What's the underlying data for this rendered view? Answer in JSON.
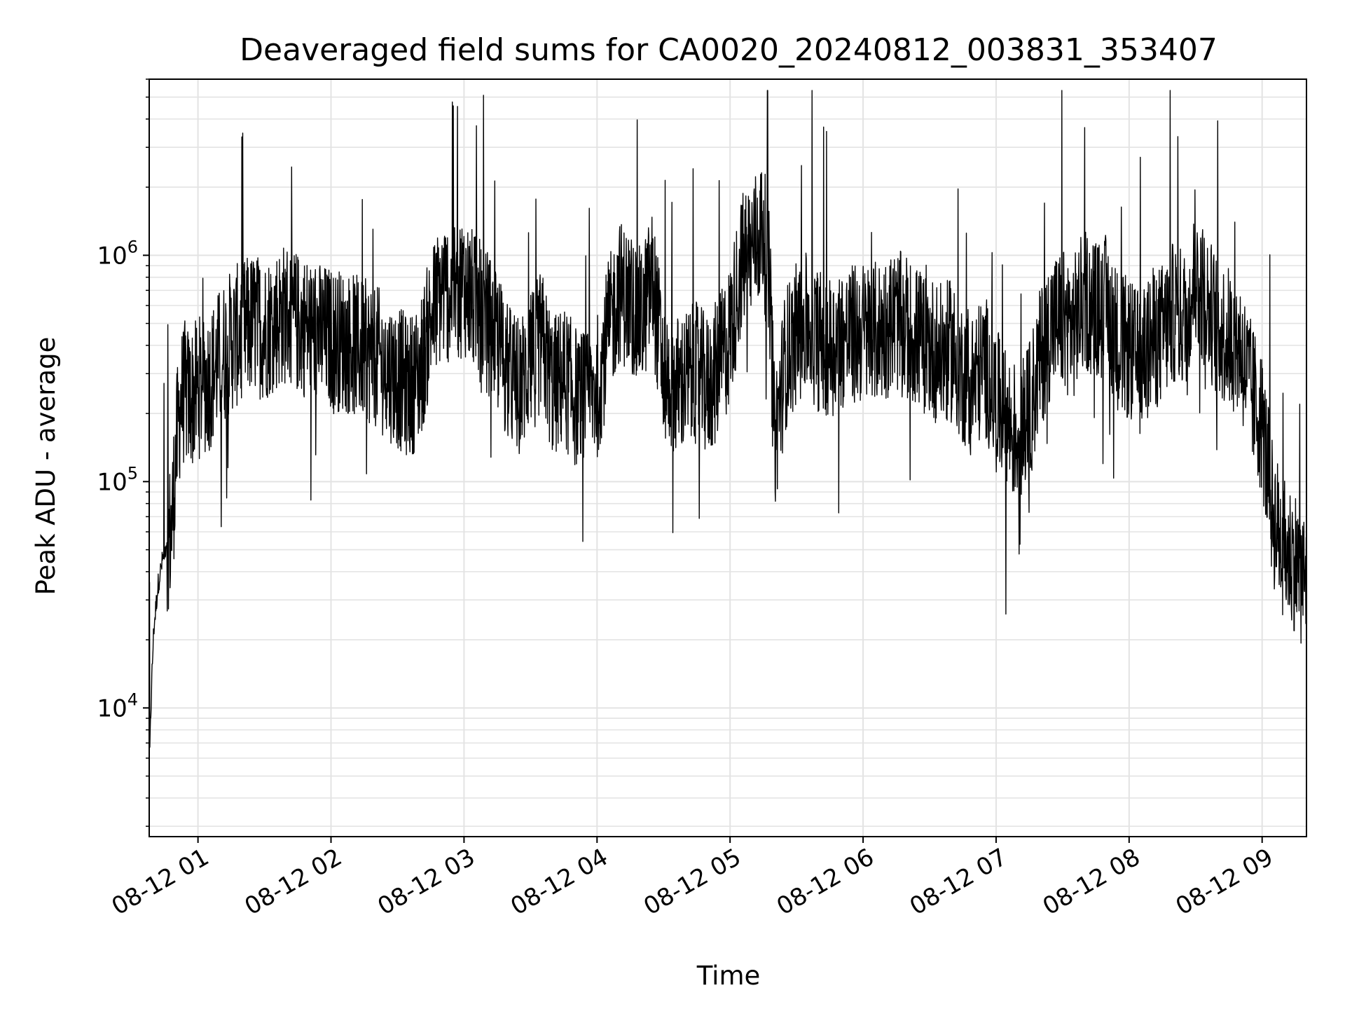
{
  "chart_data": {
    "type": "line",
    "title": "Deaveraged field sums for CA0020_20240812_003831_353407",
    "xlabel": "Time",
    "ylabel": "Peak ADU - average",
    "y_scale": "log",
    "ylim": [
      2700,
      6000000
    ],
    "xlim": [
      "08-12 00:38",
      "08-12 09:20"
    ],
    "grid": "major and minor, light gray",
    "line_color": "#000000",
    "x_ticks": [
      "08-12 01",
      "08-12 02",
      "08-12 03",
      "08-12 04",
      "08-12 05",
      "08-12 06",
      "08-12 07",
      "08-12 08",
      "08-12 09"
    ],
    "y_ticks": [
      {
        "base": "10",
        "exp": "4"
      },
      {
        "base": "10",
        "exp": "5"
      },
      {
        "base": "10",
        "exp": "6"
      }
    ],
    "series": [
      {
        "x": [
          "08-12 00:38",
          "08-12 00:39",
          "08-12 00:40",
          "08-12 00:42",
          "08-12 00:44",
          "08-12 00:46",
          "08-12 00:48",
          "08-12 00:50",
          "08-12 00:52",
          "08-12 00:54",
          "08-12 00:56",
          "08-12 00:58",
          "08-12 01:00",
          "08-12 01:05",
          "08-12 01:10",
          "08-12 01:15",
          "08-12 01:20",
          "08-12 01:25",
          "08-12 01:30",
          "08-12 01:35",
          "08-12 01:40",
          "08-12 01:45",
          "08-12 01:50",
          "08-12 01:55",
          "08-12 02:00",
          "08-12 02:05",
          "08-12 02:10",
          "08-12 02:15",
          "08-12 02:20",
          "08-12 02:25",
          "08-12 02:30",
          "08-12 02:35",
          "08-12 02:40",
          "08-12 02:45",
          "08-12 02:50",
          "08-12 02:55",
          "08-12 03:00",
          "08-12 03:05",
          "08-12 03:10",
          "08-12 03:15",
          "08-12 03:20",
          "08-12 03:25",
          "08-12 03:30",
          "08-12 03:35",
          "08-12 03:40",
          "08-12 03:45",
          "08-12 03:50",
          "08-12 03:55",
          "08-12 04:00",
          "08-12 04:05",
          "08-12 04:10",
          "08-12 04:15",
          "08-12 04:20",
          "08-12 04:25",
          "08-12 04:30",
          "08-12 04:35",
          "08-12 04:40",
          "08-12 04:45",
          "08-12 04:50",
          "08-12 04:55",
          "08-12 05:00",
          "08-12 05:05",
          "08-12 05:10",
          "08-12 05:15",
          "08-12 05:18",
          "08-12 05:20",
          "08-12 05:25",
          "08-12 05:30",
          "08-12 05:35",
          "08-12 05:40",
          "08-12 05:45",
          "08-12 05:50",
          "08-12 05:55",
          "08-12 06:00",
          "08-12 06:05",
          "08-12 06:10",
          "08-12 06:15",
          "08-12 06:20",
          "08-12 06:25",
          "08-12 06:30",
          "08-12 06:35",
          "08-12 06:40",
          "08-12 06:45",
          "08-12 06:50",
          "08-12 06:55",
          "08-12 07:00",
          "08-12 07:05",
          "08-12 07:10",
          "08-12 07:15",
          "08-12 07:20",
          "08-12 07:25",
          "08-12 07:30",
          "08-12 07:35",
          "08-12 07:40",
          "08-12 07:45",
          "08-12 07:50",
          "08-12 07:55",
          "08-12 08:00",
          "08-12 08:05",
          "08-12 08:10",
          "08-12 08:15",
          "08-12 08:20",
          "08-12 08:25",
          "08-12 08:30",
          "08-12 08:35",
          "08-12 08:40",
          "08-12 08:45",
          "08-12 08:50",
          "08-12 08:55",
          "08-12 09:00",
          "08-12 09:05",
          "08-12 09:10",
          "08-12 09:15",
          "08-12 09:20"
        ],
        "y": [
          5000,
          12000,
          22000,
          35000,
          45000,
          55000,
          60000,
          130000,
          220000,
          250000,
          230000,
          240000,
          260000,
          280000,
          350000,
          420000,
          460000,
          500000,
          470000,
          520000,
          560000,
          500000,
          480000,
          450000,
          430000,
          420000,
          400000,
          380000,
          360000,
          320000,
          290000,
          260000,
          300000,
          520000,
          700000,
          680000,
          750000,
          600000,
          520000,
          420000,
          300000,
          260000,
          330000,
          420000,
          260000,
          290000,
          240000,
          220000,
          260000,
          450000,
          700000,
          620000,
          520000,
          780000,
          300000,
          260000,
          280000,
          300000,
          260000,
          320000,
          450000,
          900000,
          1100000,
          1300000,
          700000,
          150000,
          350000,
          450000,
          500000,
          420000,
          400000,
          430000,
          440000,
          460000,
          450000,
          480000,
          520000,
          470000,
          430000,
          400000,
          360000,
          380000,
          300000,
          280000,
          330000,
          230000,
          180000,
          160000,
          200000,
          350000,
          500000,
          520000,
          480000,
          650000,
          560000,
          600000,
          420000,
          380000,
          330000,
          420000,
          450000,
          560000,
          520000,
          800000,
          620000,
          480000,
          430000,
          400000,
          250000,
          180000,
          70000,
          50000,
          45000,
          35000
        ]
      }
    ]
  }
}
